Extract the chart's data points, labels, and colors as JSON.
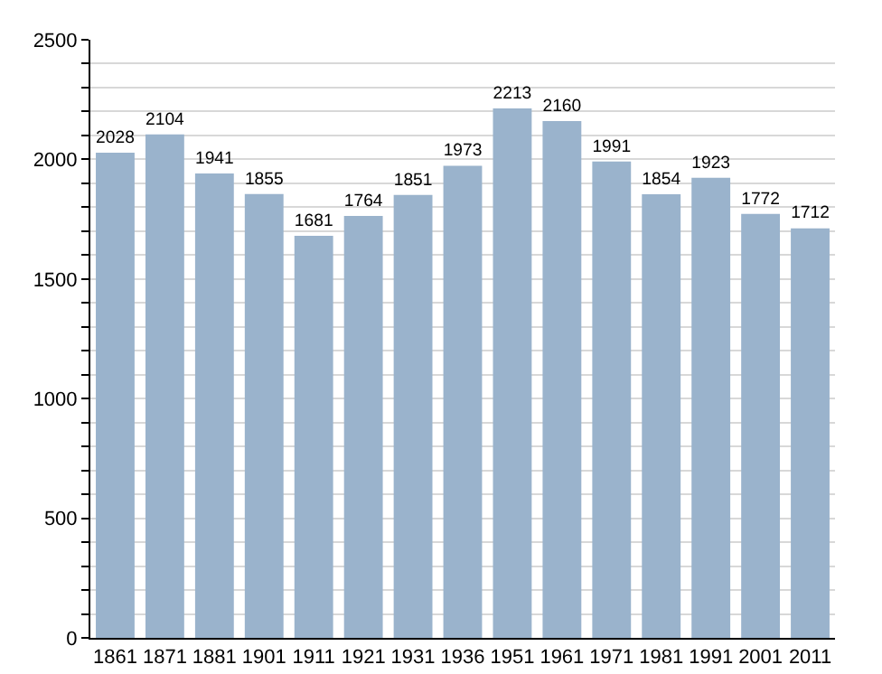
{
  "chart_data": {
    "type": "bar",
    "categories": [
      "1861",
      "1871",
      "1881",
      "1901",
      "1911",
      "1921",
      "1931",
      "1936",
      "1951",
      "1961",
      "1971",
      "1981",
      "1991",
      "2001",
      "2011"
    ],
    "values": [
      2028,
      2104,
      1941,
      1855,
      1681,
      1764,
      1851,
      1973,
      2213,
      2160,
      1991,
      1854,
      1923,
      1772,
      1712
    ],
    "color": "#9ab3cc",
    "data_labels": true,
    "grid": "y",
    "ylim": [
      0,
      2500
    ],
    "yticks": [
      0,
      {
        "value": 100,
        "label": null
      },
      {
        "value": 200,
        "label": null
      },
      {
        "value": 300,
        "label": null
      },
      {
        "value": 400,
        "label": null
      },
      500,
      {
        "value": 600,
        "label": null
      },
      {
        "value": 700,
        "label": null
      },
      {
        "value": 800,
        "label": null
      },
      {
        "value": 900,
        "label": null
      },
      1000,
      {
        "value": 1100,
        "label": null
      },
      {
        "value": 1200,
        "label": null
      },
      {
        "value": 1300,
        "label": null
      },
      {
        "value": 1400,
        "label": null
      },
      1500,
      {
        "value": 1600,
        "label": null
      },
      {
        "value": 1700,
        "label": null
      },
      {
        "value": 1800,
        "label": null
      },
      {
        "value": 1900,
        "label": null
      },
      2000,
      {
        "value": 2100,
        "label": null
      },
      {
        "value": 2200,
        "label": null
      },
      {
        "value": 2300,
        "label": null
      },
      {
        "value": 2400,
        "label": null
      },
      2500
    ]
  }
}
